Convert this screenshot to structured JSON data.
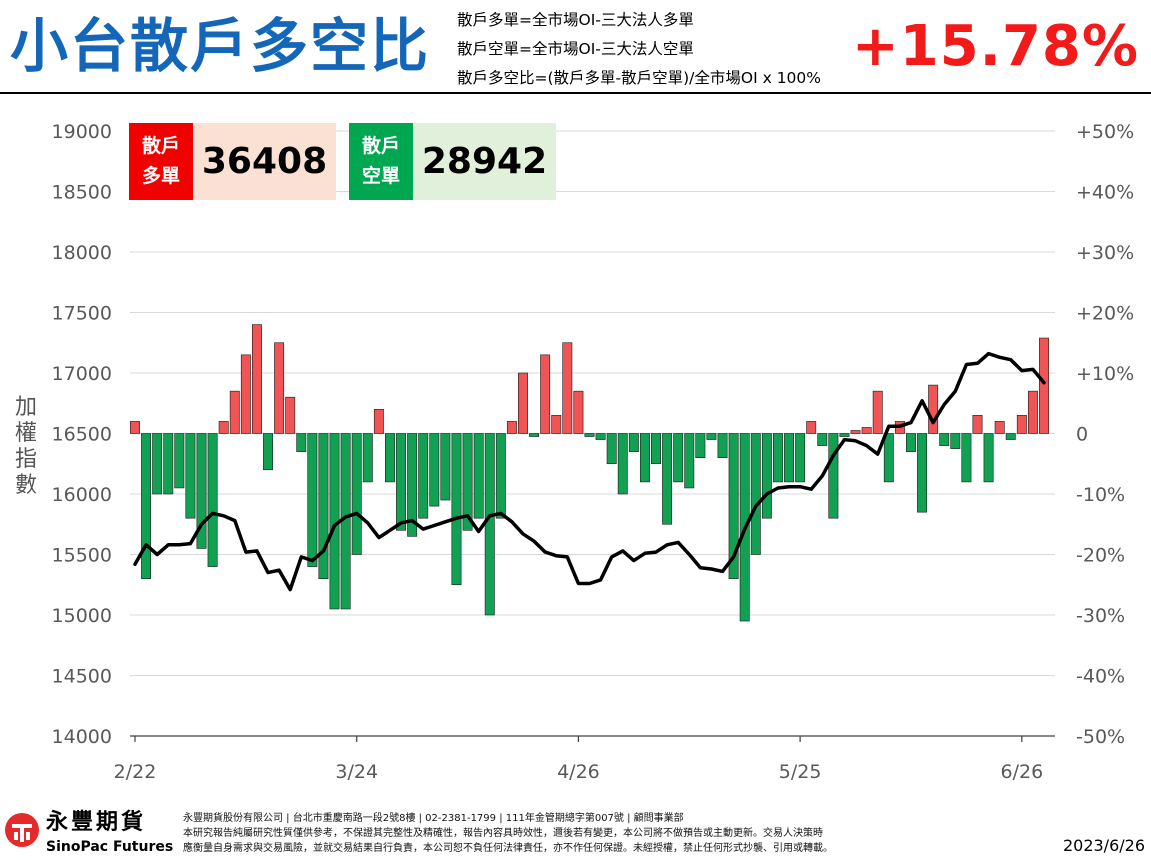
{
  "header": {
    "title": "小台散戶多空比",
    "definitions": [
      "散戶多單=全市場OI-三大法人多單",
      "散戶空單=全市場OI-三大法人空單",
      "散戶多空比=(散戶多單-散戶空單)/全市場OI x 100%"
    ],
    "current_ratio": "+15.78%"
  },
  "boxes": {
    "long": {
      "label_line1": "散戶",
      "label_line2": "多單",
      "value": "36408",
      "label_color": "#f10000",
      "value_bg": "#fbe1d3"
    },
    "short": {
      "label_line1": "散戶",
      "label_line2": "空單",
      "value": "28942",
      "label_color": "#00a650",
      "value_bg": "#e1f0da"
    }
  },
  "axis_title": {
    "line1": "加",
    "line2": "權",
    "line3": "指",
    "line4": "數"
  },
  "chart_data": {
    "type": "bar+line",
    "x_tick_labels": [
      "2/22",
      "3/24",
      "4/26",
      "5/25",
      "6/26"
    ],
    "x_tick_indices": [
      0,
      20,
      40,
      60,
      80
    ],
    "left_axis": {
      "label": "加權指數",
      "range": [
        14000,
        19000
      ],
      "ticks": [
        "14000",
        "14500",
        "15000",
        "15500",
        "16000",
        "16500",
        "17000",
        "17500",
        "18000",
        "18500",
        "19000"
      ]
    },
    "right_axis": {
      "range": [
        -50,
        50
      ],
      "ticks": [
        "-50%",
        "-40%",
        "-30%",
        "-20%",
        "-10%",
        "0",
        "+10%",
        "+20%",
        "+30%",
        "+40%",
        "+50%"
      ]
    },
    "bar_series": {
      "name": "散戶多空比 (%)",
      "positive_color": "#f05454",
      "negative_color": "#12a153",
      "values": [
        2,
        -24,
        -10,
        -10,
        -9,
        -14,
        -19,
        -22,
        2,
        7,
        13,
        18,
        -6,
        15,
        6,
        -3,
        -22,
        -24,
        -29,
        -29,
        -20,
        -8,
        4,
        -8,
        -16,
        -17,
        -14,
        -12,
        -11,
        -25,
        -16,
        -14,
        -30,
        -14,
        2,
        10,
        -0.5,
        13,
        3,
        15,
        7,
        -0.5,
        -1,
        -5,
        -10,
        -3,
        -8,
        -5,
        -15,
        -8,
        -9,
        -4,
        -1,
        -4,
        -24,
        -31,
        -20,
        -14,
        -8,
        -8,
        -8,
        2,
        -2,
        -14,
        -0.5,
        0.5,
        1,
        7,
        -8,
        2,
        -3,
        -13,
        8,
        -2,
        -2.5,
        -8,
        3,
        -8,
        2,
        -1,
        3,
        7,
        15.78
      ]
    },
    "line_series": {
      "name": "加權指數",
      "color": "#000000",
      "values": [
        15420,
        15580,
        15500,
        15580,
        15580,
        15590,
        15750,
        15840,
        15820,
        15780,
        15520,
        15530,
        15350,
        15370,
        15210,
        15480,
        15450,
        15530,
        15740,
        15810,
        15840,
        15760,
        15640,
        15700,
        15760,
        15780,
        15710,
        15740,
        15770,
        15800,
        15820,
        15690,
        15820,
        15840,
        15770,
        15670,
        15610,
        15520,
        15490,
        15480,
        15260,
        15260,
        15290,
        15480,
        15530,
        15450,
        15510,
        15520,
        15580,
        15600,
        15500,
        15390,
        15380,
        15360,
        15480,
        15710,
        15900,
        16000,
        16050,
        16060,
        16060,
        16040,
        16150,
        16320,
        16450,
        16440,
        16400,
        16330,
        16560,
        16560,
        16590,
        16770,
        16590,
        16740,
        16850,
        17070,
        17080,
        17160,
        17130,
        17110,
        17020,
        17030,
        16920
      ]
    }
  },
  "footer": {
    "brand_cn": "永豐期貨",
    "brand_en": "SinoPac Futures",
    "disclaimer": [
      "永豐期貨股份有限公司 | 台北市重慶南路一段2號8樓 | 02-2381-1799 | 111年金管期總字第007號 | 顧問事業部",
      "本研究報告純屬研究性質僅供參考，不保證其完整性及精確性，報告內容具時效性，邇後若有變更，本公司將不做預告或主動更新。交易人決策時",
      "應衡量自身需求與交易風險，並就交易結果自行負責，本公司恕不負任何法律責任，亦不作任何保證。未經授權，禁止任何形式抄襲、引用或轉載。"
    ],
    "date": "2023/6/26"
  }
}
